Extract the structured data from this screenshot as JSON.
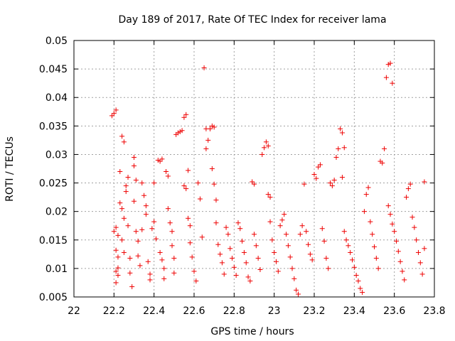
{
  "chart_data": {
    "type": "scatter",
    "title": "Day 189 of 2017, Rate Of TEC Index for receiver lama",
    "xlabel": "GPS time / hours",
    "ylabel": "ROTI / TECUs",
    "xlim": [
      22,
      23.8
    ],
    "ylim": [
      0.005,
      0.05
    ],
    "x_ticks": [
      22,
      22.2,
      22.4,
      22.6,
      22.8,
      23,
      23.2,
      23.4,
      23.6,
      23.8
    ],
    "x_tick_labels": [
      "22",
      "22.2",
      "22.4",
      "22.6",
      "22.8",
      "23",
      "23.2",
      "23.4",
      "23.6",
      "23.8"
    ],
    "y_ticks": [
      0.005,
      0.01,
      0.015,
      0.02,
      0.025,
      0.03,
      0.035,
      0.04,
      0.045,
      0.05
    ],
    "y_tick_labels": [
      "0.005",
      "0.01",
      "0.015",
      "0.02",
      "0.025",
      "0.03",
      "0.035",
      "0.04",
      "0.045",
      "0.05"
    ],
    "grid": true,
    "marker": "+",
    "marker_color": "#ee0000",
    "series": [
      {
        "name": "ROTI",
        "points": [
          [
            22.19,
            0.0368
          ],
          [
            22.2,
            0.0372
          ],
          [
            22.21,
            0.0378
          ],
          [
            22.2,
            0.0165
          ],
          [
            22.21,
            0.0172
          ],
          [
            22.22,
            0.0158
          ],
          [
            22.21,
            0.0132
          ],
          [
            22.22,
            0.012
          ],
          [
            22.22,
            0.0101
          ],
          [
            22.21,
            0.0095
          ],
          [
            22.22,
            0.0088
          ],
          [
            22.21,
            0.0075
          ],
          [
            22.23,
            0.0215
          ],
          [
            22.23,
            0.027
          ],
          [
            22.24,
            0.0332
          ],
          [
            22.25,
            0.0322
          ],
          [
            22.24,
            0.0205
          ],
          [
            22.25,
            0.0188
          ],
          [
            22.24,
            0.015
          ],
          [
            22.25,
            0.0128
          ],
          [
            22.26,
            0.0245
          ],
          [
            22.26,
            0.0235
          ],
          [
            22.27,
            0.026
          ],
          [
            22.27,
            0.0175
          ],
          [
            22.28,
            0.0118
          ],
          [
            22.28,
            0.0092
          ],
          [
            22.29,
            0.0068
          ],
          [
            22.3,
            0.028
          ],
          [
            22.3,
            0.0295
          ],
          [
            22.31,
            0.0255
          ],
          [
            22.3,
            0.0218
          ],
          [
            22.31,
            0.0165
          ],
          [
            22.32,
            0.0148
          ],
          [
            22.32,
            0.0122
          ],
          [
            22.33,
            0.0105
          ],
          [
            22.34,
            0.0168
          ],
          [
            22.34,
            0.025
          ],
          [
            22.35,
            0.0228
          ],
          [
            22.36,
            0.021
          ],
          [
            22.36,
            0.0195
          ],
          [
            22.37,
            0.0112
          ],
          [
            22.38,
            0.009
          ],
          [
            22.38,
            0.008
          ],
          [
            22.39,
            0.017
          ],
          [
            22.4,
            0.025
          ],
          [
            22.4,
            0.0182
          ],
          [
            22.41,
            0.0152
          ],
          [
            22.42,
            0.029
          ],
          [
            22.43,
            0.0288
          ],
          [
            22.44,
            0.0292
          ],
          [
            22.43,
            0.0128
          ],
          [
            22.44,
            0.0115
          ],
          [
            22.45,
            0.01
          ],
          [
            22.45,
            0.0082
          ],
          [
            22.46,
            0.027
          ],
          [
            22.47,
            0.0262
          ],
          [
            22.47,
            0.0205
          ],
          [
            22.48,
            0.018
          ],
          [
            22.49,
            0.0165
          ],
          [
            22.49,
            0.014
          ],
          [
            22.5,
            0.0118
          ],
          [
            22.5,
            0.0092
          ],
          [
            22.51,
            0.0335
          ],
          [
            22.52,
            0.0338
          ],
          [
            22.53,
            0.034
          ],
          [
            22.54,
            0.0342
          ],
          [
            22.55,
            0.0365
          ],
          [
            22.56,
            0.037
          ],
          [
            22.55,
            0.0245
          ],
          [
            22.56,
            0.024
          ],
          [
            22.57,
            0.0272
          ],
          [
            22.57,
            0.0188
          ],
          [
            22.58,
            0.0175
          ],
          [
            22.58,
            0.0145
          ],
          [
            22.59,
            0.012
          ],
          [
            22.6,
            0.0095
          ],
          [
            22.61,
            0.0078
          ],
          [
            22.62,
            0.025
          ],
          [
            22.63,
            0.0222
          ],
          [
            22.64,
            0.0155
          ],
          [
            22.65,
            0.0452
          ],
          [
            22.66,
            0.0345
          ],
          [
            22.66,
            0.031
          ],
          [
            22.67,
            0.0325
          ],
          [
            22.68,
            0.0345
          ],
          [
            22.69,
            0.035
          ],
          [
            22.7,
            0.0348
          ],
          [
            22.69,
            0.0275
          ],
          [
            22.7,
            0.0248
          ],
          [
            22.71,
            0.022
          ],
          [
            22.71,
            0.018
          ],
          [
            22.72,
            0.0142
          ],
          [
            22.73,
            0.0125
          ],
          [
            22.74,
            0.011
          ],
          [
            22.75,
            0.009
          ],
          [
            22.76,
            0.0172
          ],
          [
            22.77,
            0.016
          ],
          [
            22.78,
            0.0135
          ],
          [
            22.79,
            0.0118
          ],
          [
            22.8,
            0.0102
          ],
          [
            22.81,
            0.0088
          ],
          [
            22.82,
            0.018
          ],
          [
            22.83,
            0.017
          ],
          [
            22.84,
            0.0148
          ],
          [
            22.85,
            0.0128
          ],
          [
            22.86,
            0.011
          ],
          [
            22.87,
            0.0085
          ],
          [
            22.88,
            0.0078
          ],
          [
            22.89,
            0.0252
          ],
          [
            22.9,
            0.0248
          ],
          [
            22.9,
            0.016
          ],
          [
            22.91,
            0.014
          ],
          [
            22.92,
            0.0118
          ],
          [
            22.93,
            0.0098
          ],
          [
            22.94,
            0.03
          ],
          [
            22.95,
            0.0312
          ],
          [
            22.96,
            0.0322
          ],
          [
            22.97,
            0.0315
          ],
          [
            22.97,
            0.023
          ],
          [
            22.98,
            0.0225
          ],
          [
            22.98,
            0.0182
          ],
          [
            22.99,
            0.015
          ],
          [
            23.0,
            0.0128
          ],
          [
            23.01,
            0.0112
          ],
          [
            23.02,
            0.0095
          ],
          [
            23.03,
            0.0175
          ],
          [
            23.04,
            0.0185
          ],
          [
            23.05,
            0.0195
          ],
          [
            23.06,
            0.016
          ],
          [
            23.07,
            0.014
          ],
          [
            23.08,
            0.012
          ],
          [
            23.09,
            0.01
          ],
          [
            23.1,
            0.0082
          ],
          [
            23.11,
            0.0062
          ],
          [
            23.12,
            0.0055
          ],
          [
            23.13,
            0.016
          ],
          [
            23.14,
            0.0175
          ],
          [
            23.15,
            0.0248
          ],
          [
            23.16,
            0.0165
          ],
          [
            23.17,
            0.0142
          ],
          [
            23.18,
            0.0125
          ],
          [
            23.19,
            0.0115
          ],
          [
            23.2,
            0.0265
          ],
          [
            23.21,
            0.0258
          ],
          [
            23.22,
            0.0278
          ],
          [
            23.23,
            0.0282
          ],
          [
            23.24,
            0.017
          ],
          [
            23.25,
            0.0148
          ],
          [
            23.26,
            0.0118
          ],
          [
            23.27,
            0.01
          ],
          [
            23.28,
            0.025
          ],
          [
            23.29,
            0.0245
          ],
          [
            23.3,
            0.0255
          ],
          [
            23.31,
            0.0295
          ],
          [
            23.32,
            0.031
          ],
          [
            23.33,
            0.0345
          ],
          [
            23.34,
            0.0338
          ],
          [
            23.35,
            0.0312
          ],
          [
            23.34,
            0.026
          ],
          [
            23.35,
            0.0165
          ],
          [
            23.36,
            0.015
          ],
          [
            23.37,
            0.014
          ],
          [
            23.38,
            0.0128
          ],
          [
            23.39,
            0.0115
          ],
          [
            23.4,
            0.0102
          ],
          [
            23.41,
            0.0088
          ],
          [
            23.42,
            0.0078
          ],
          [
            23.43,
            0.0065
          ],
          [
            23.44,
            0.0058
          ],
          [
            23.45,
            0.02
          ],
          [
            23.46,
            0.023
          ],
          [
            23.47,
            0.0242
          ],
          [
            23.48,
            0.0182
          ],
          [
            23.49,
            0.016
          ],
          [
            23.5,
            0.0138
          ],
          [
            23.51,
            0.0118
          ],
          [
            23.52,
            0.01
          ],
          [
            23.53,
            0.0288
          ],
          [
            23.54,
            0.0285
          ],
          [
            23.55,
            0.031
          ],
          [
            23.56,
            0.0435
          ],
          [
            23.57,
            0.0458
          ],
          [
            23.58,
            0.046
          ],
          [
            23.59,
            0.0425
          ],
          [
            23.57,
            0.021
          ],
          [
            23.58,
            0.0195
          ],
          [
            23.59,
            0.0178
          ],
          [
            23.6,
            0.0165
          ],
          [
            23.61,
            0.0148
          ],
          [
            23.62,
            0.013
          ],
          [
            23.63,
            0.0112
          ],
          [
            23.64,
            0.0095
          ],
          [
            23.65,
            0.008
          ],
          [
            23.66,
            0.0225
          ],
          [
            23.67,
            0.024
          ],
          [
            23.68,
            0.0248
          ],
          [
            23.69,
            0.019
          ],
          [
            23.7,
            0.0172
          ],
          [
            23.71,
            0.015
          ],
          [
            23.72,
            0.0128
          ],
          [
            23.73,
            0.011
          ],
          [
            23.74,
            0.009
          ],
          [
            23.75,
            0.0252
          ],
          [
            23.75,
            0.0135
          ]
        ]
      }
    ]
  }
}
